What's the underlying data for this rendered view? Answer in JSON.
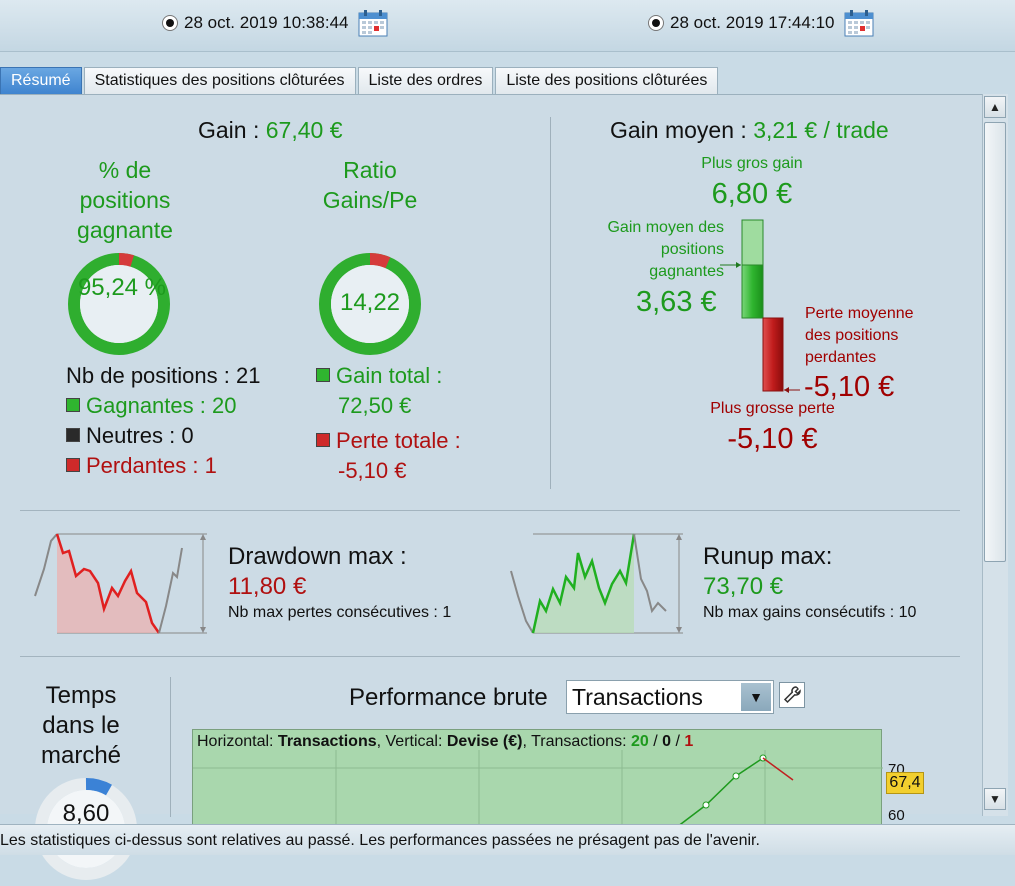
{
  "dates": {
    "start": "28 oct. 2019 10:38:44",
    "end": "28 oct. 2019 17:44:10"
  },
  "tabs": [
    {
      "label": "Résumé",
      "active": true
    },
    {
      "label": "Statistiques des positions clôturées",
      "active": false
    },
    {
      "label": "Liste des ordres",
      "active": false
    },
    {
      "label": "Liste des positions clôturées",
      "active": false
    }
  ],
  "gain": {
    "label": "Gain : ",
    "value": "67,40 €"
  },
  "win_pct": {
    "title": "% de positions gagnante",
    "value": "95,24 %",
    "fraction": 0.9524
  },
  "ratio": {
    "title": "Ratio Gains/Pe",
    "value": "14,22",
    "fraction": 0.935
  },
  "positions": {
    "count": "Nb de positions : 21",
    "winners": "Gagnantes : 20",
    "neutral": "Neutres : 0",
    "losers": "Perdantes : 1"
  },
  "totals": {
    "gain_label": "Gain total :",
    "gain_value": "72,50 €",
    "loss_label": "Perte totale :",
    "loss_value": "-5,10 €"
  },
  "avg": {
    "label": "Gain moyen : ",
    "value": "3,21 € / trade",
    "biggest_gain_label": "Plus gros gain",
    "biggest_gain_value": "6,80 €",
    "avg_win_label": "Gain moyen des positions gagnantes",
    "avg_win_value": "3,63 €",
    "avg_loss_label": "Perte moyenne des positions perdantes",
    "avg_loss_value": "-5,10 €",
    "biggest_loss_label": "Plus grosse perte",
    "biggest_loss_value": "-5,10 €"
  },
  "drawdown": {
    "label": "Drawdown max :",
    "value": "11,80 €",
    "sub": "Nb max pertes consécutives : 1"
  },
  "runup": {
    "label": "Runup max:",
    "value": "73,70 €",
    "sub": "Nb max gains consécutifs : 10"
  },
  "time_in_market": {
    "label": "Temps dans le marché",
    "value": "8,60"
  },
  "performance": {
    "title": "Performance brute",
    "select_value": "Transactions",
    "legend_prefix": "Horizontal: ",
    "legend_h": "Transactions",
    "legend_mid": ", Vertical: ",
    "legend_v": "Devise (€)",
    "legend_tx": ", Transactions: ",
    "tx_win": "20",
    "tx_sep1": " / ",
    "tx_neutral": "0",
    "tx_sep2": " / ",
    "tx_loss": "1",
    "y_tick_top": "70",
    "y_tick_bottom": "60",
    "current_value": "67,4"
  },
  "disclaimer": "Les statistiques ci-dessus sont relatives au passé. Les performances passées ne présagent pas de l'avenir.",
  "colors": {
    "green": "#1d9a1d",
    "red": "#b01010",
    "accent": "#3f84cf"
  }
}
